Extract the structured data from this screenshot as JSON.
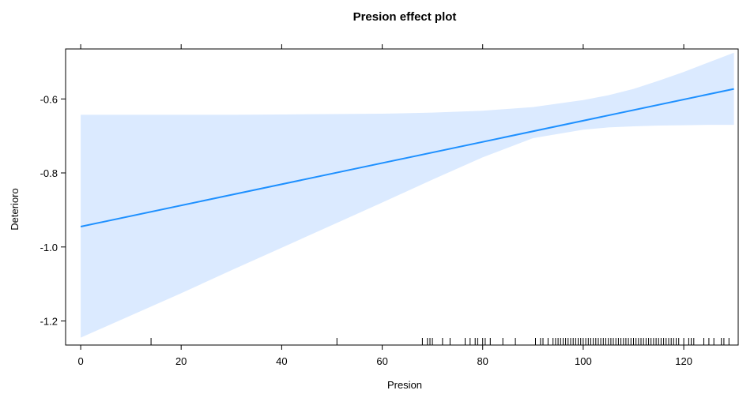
{
  "chart_data": {
    "type": "line",
    "title": "Presion effect plot",
    "xlabel": "Presion",
    "ylabel": "Deterioro",
    "xlim": [
      -3,
      131
    ],
    "ylim": [
      -1.265,
      -0.465
    ],
    "x_ticks": [
      0,
      20,
      40,
      60,
      80,
      100,
      120
    ],
    "x_tick_labels": [
      "0",
      "20",
      "40",
      "60",
      "80",
      "100",
      "120"
    ],
    "y_ticks": [
      -0.6,
      -0.8,
      -1.0,
      -1.2
    ],
    "y_tick_labels": [
      "-0.6",
      "-0.8",
      "-1.0",
      "-1.2"
    ],
    "series": [
      {
        "color": "#1e90ff",
        "x": [
          0,
          130
        ],
        "y": [
          -0.945,
          -0.573
        ]
      }
    ],
    "confidence_band": {
      "color": "#dbeaff",
      "x": [
        0,
        10,
        20,
        30,
        40,
        50,
        60,
        70,
        80,
        90,
        100,
        105,
        110,
        115,
        120,
        125,
        130
      ],
      "upper": [
        -0.643,
        -0.643,
        -0.643,
        -0.643,
        -0.642,
        -0.641,
        -0.64,
        -0.637,
        -0.632,
        -0.622,
        -0.603,
        -0.59,
        -0.573,
        -0.551,
        -0.527,
        -0.501,
        -0.475
      ],
      "lower": [
        -1.245,
        -1.185,
        -1.125,
        -1.063,
        -1.002,
        -0.941,
        -0.88,
        -0.818,
        -0.758,
        -0.706,
        -0.683,
        -0.677,
        -0.674,
        -0.672,
        -0.671,
        -0.67,
        -0.67
      ]
    },
    "rug": [
      14,
      51,
      68,
      69,
      69.5,
      70,
      72,
      73.5,
      76.5,
      77.5,
      78.5,
      79,
      80,
      80.5,
      81.5,
      84,
      86.5,
      90.5,
      91.5,
      92,
      93,
      94,
      94.5,
      95,
      95.5,
      96,
      96.5,
      97,
      97.5,
      98,
      98.5,
      99,
      99.5,
      100,
      100.5,
      101,
      101.5,
      102,
      102.5,
      103,
      103.5,
      104,
      104.5,
      105,
      105.5,
      106,
      106.5,
      107,
      107.5,
      108,
      108.5,
      109,
      109.5,
      110,
      110.5,
      111,
      111.5,
      112,
      112.5,
      113,
      113.5,
      114,
      114.5,
      115,
      115.5,
      116,
      116.5,
      117,
      117.5,
      118,
      118.5,
      119,
      120,
      121,
      121.5,
      122,
      124,
      125,
      126,
      127.5,
      128,
      129
    ]
  }
}
